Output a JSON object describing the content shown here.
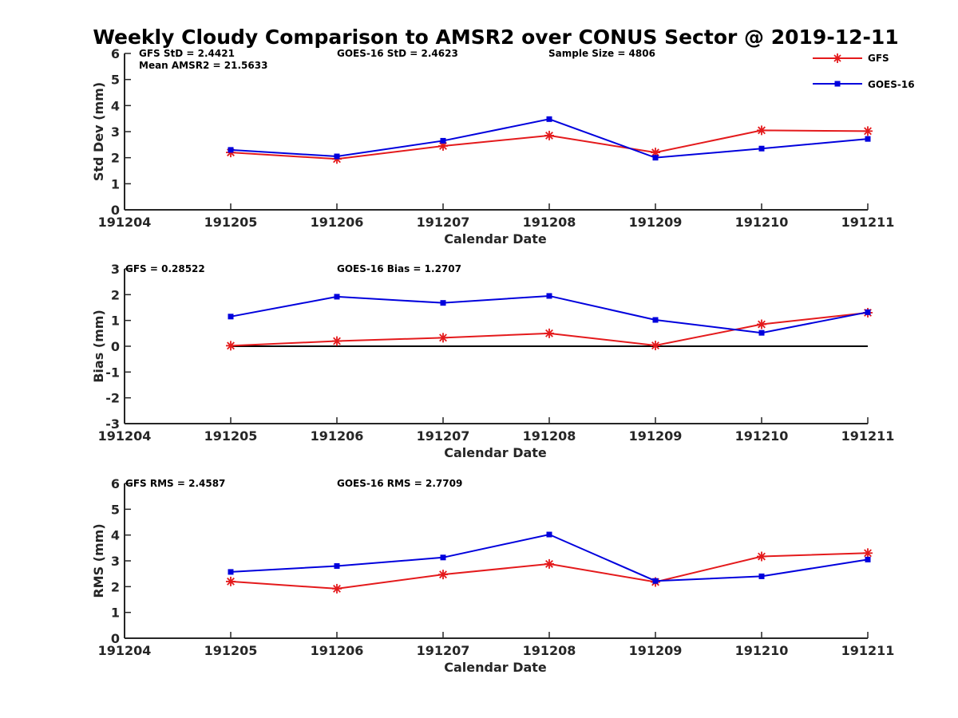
{
  "title": "Weekly Cloudy Comparison to AMSR2 over CONUS Sector @ 2019-12-11",
  "legend": [
    {
      "name": "GFS",
      "color": "#e41a1c",
      "marker": "asterisk"
    },
    {
      "name": "GOES-16",
      "color": "#0000dd",
      "marker": "square"
    }
  ],
  "chart_data": [
    {
      "type": "line",
      "xlabel": "Calendar Date",
      "ylabel": "Std Dev (mm)",
      "ylim": [
        0,
        6
      ],
      "yticks": [
        "0",
        "1",
        "2",
        "3",
        "4",
        "5",
        "6"
      ],
      "x": [
        "191204",
        "191205",
        "191206",
        "191207",
        "191208",
        "191209",
        "191210",
        "191211"
      ],
      "series": [
        {
          "name": "GFS",
          "x": [
            "191205",
            "191206",
            "191207",
            "191208",
            "191209",
            "191210",
            "191211"
          ],
          "values": [
            2.2,
            1.95,
            2.45,
            2.85,
            2.2,
            3.05,
            3.02
          ]
        },
        {
          "name": "GOES-16",
          "x": [
            "191205",
            "191206",
            "191207",
            "191208",
            "191209",
            "191210",
            "191211"
          ],
          "values": [
            2.3,
            2.05,
            2.65,
            3.48,
            2.0,
            2.35,
            2.72
          ]
        }
      ],
      "annotations": [
        "GFS StD = 2.4421",
        "Mean AMSR2 = 21.5633",
        "GOES-16 StD = 2.4623",
        "Sample Size = 4806"
      ]
    },
    {
      "type": "line",
      "xlabel": "Calendar Date",
      "ylabel": "Bias (mm)",
      "ylim": [
        -3,
        3
      ],
      "yticks": [
        "-3",
        "-2",
        "-1",
        "0",
        "1",
        "2",
        "3"
      ],
      "x": [
        "191204",
        "191205",
        "191206",
        "191207",
        "191208",
        "191209",
        "191210",
        "191211"
      ],
      "reference_line": 0,
      "series": [
        {
          "name": "GFS",
          "x": [
            "191205",
            "191206",
            "191207",
            "191208",
            "191209",
            "191210",
            "191211"
          ],
          "values": [
            0.02,
            0.2,
            0.33,
            0.5,
            0.03,
            0.85,
            1.3
          ]
        },
        {
          "name": "GOES-16",
          "x": [
            "191205",
            "191206",
            "191207",
            "191208",
            "191209",
            "191210",
            "191211"
          ],
          "values": [
            1.15,
            1.92,
            1.68,
            1.95,
            1.02,
            0.52,
            1.32
          ]
        }
      ],
      "annotations": [
        "GFS = 0.28522",
        "GOES-16 Bias  = 1.2707"
      ]
    },
    {
      "type": "line",
      "xlabel": "Calendar Date",
      "ylabel": "RMS (mm)",
      "ylim": [
        0,
        6
      ],
      "yticks": [
        "0",
        "1",
        "2",
        "3",
        "4",
        "5",
        "6"
      ],
      "x": [
        "191204",
        "191205",
        "191206",
        "191207",
        "191208",
        "191209",
        "191210",
        "191211"
      ],
      "series": [
        {
          "name": "GFS",
          "x": [
            "191205",
            "191206",
            "191207",
            "191208",
            "191209",
            "191210",
            "191211"
          ],
          "values": [
            2.2,
            1.92,
            2.47,
            2.88,
            2.18,
            3.17,
            3.3
          ]
        },
        {
          "name": "GOES-16",
          "x": [
            "191205",
            "191206",
            "191207",
            "191208",
            "191209",
            "191210",
            "191211"
          ],
          "values": [
            2.57,
            2.8,
            3.13,
            4.02,
            2.22,
            2.4,
            3.05
          ]
        }
      ],
      "annotations": [
        "GFS RMS = 2.4587",
        "GOES-16 RMS = 2.7709"
      ]
    }
  ]
}
